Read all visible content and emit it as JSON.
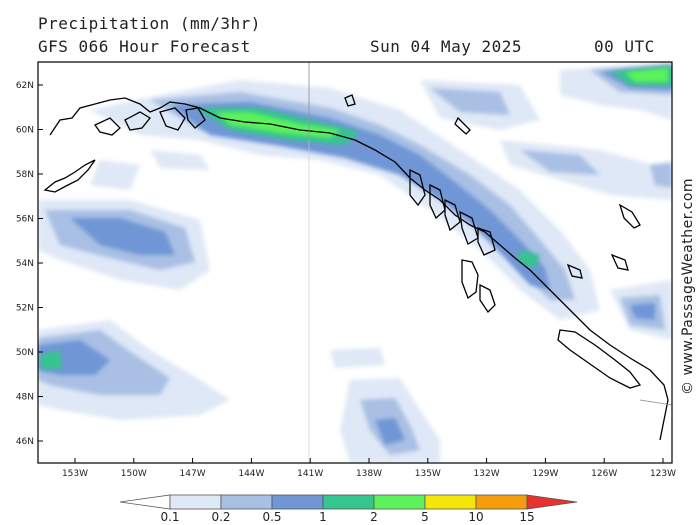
{
  "header": {
    "title": "Precipitation (mm/3hr)",
    "model": "GFS 066 Hour Forecast",
    "date": "Sun 04 May 2025",
    "time": "00 UTC"
  },
  "credit": "© www.PassageWeather.com",
  "axes": {
    "lat_labels": [
      "62N",
      "60N",
      "58N",
      "56N",
      "54N",
      "52N",
      "50N",
      "48N",
      "46N"
    ],
    "lon_labels": [
      "153W",
      "150W",
      "147W",
      "144W",
      "141W",
      "138W",
      "135W",
      "132W",
      "129W",
      "126W",
      "123W"
    ]
  },
  "legend": {
    "labels": [
      "0.1",
      "0.2",
      "0.5",
      "1",
      "2",
      "5",
      "10",
      "15"
    ],
    "colors": [
      "#ffffff",
      "#dfe8f6",
      "#a9c0e4",
      "#7096d6",
      "#35c58e",
      "#5df25b",
      "#f5e60a",
      "#f59d0c",
      "#e8322f"
    ]
  }
}
